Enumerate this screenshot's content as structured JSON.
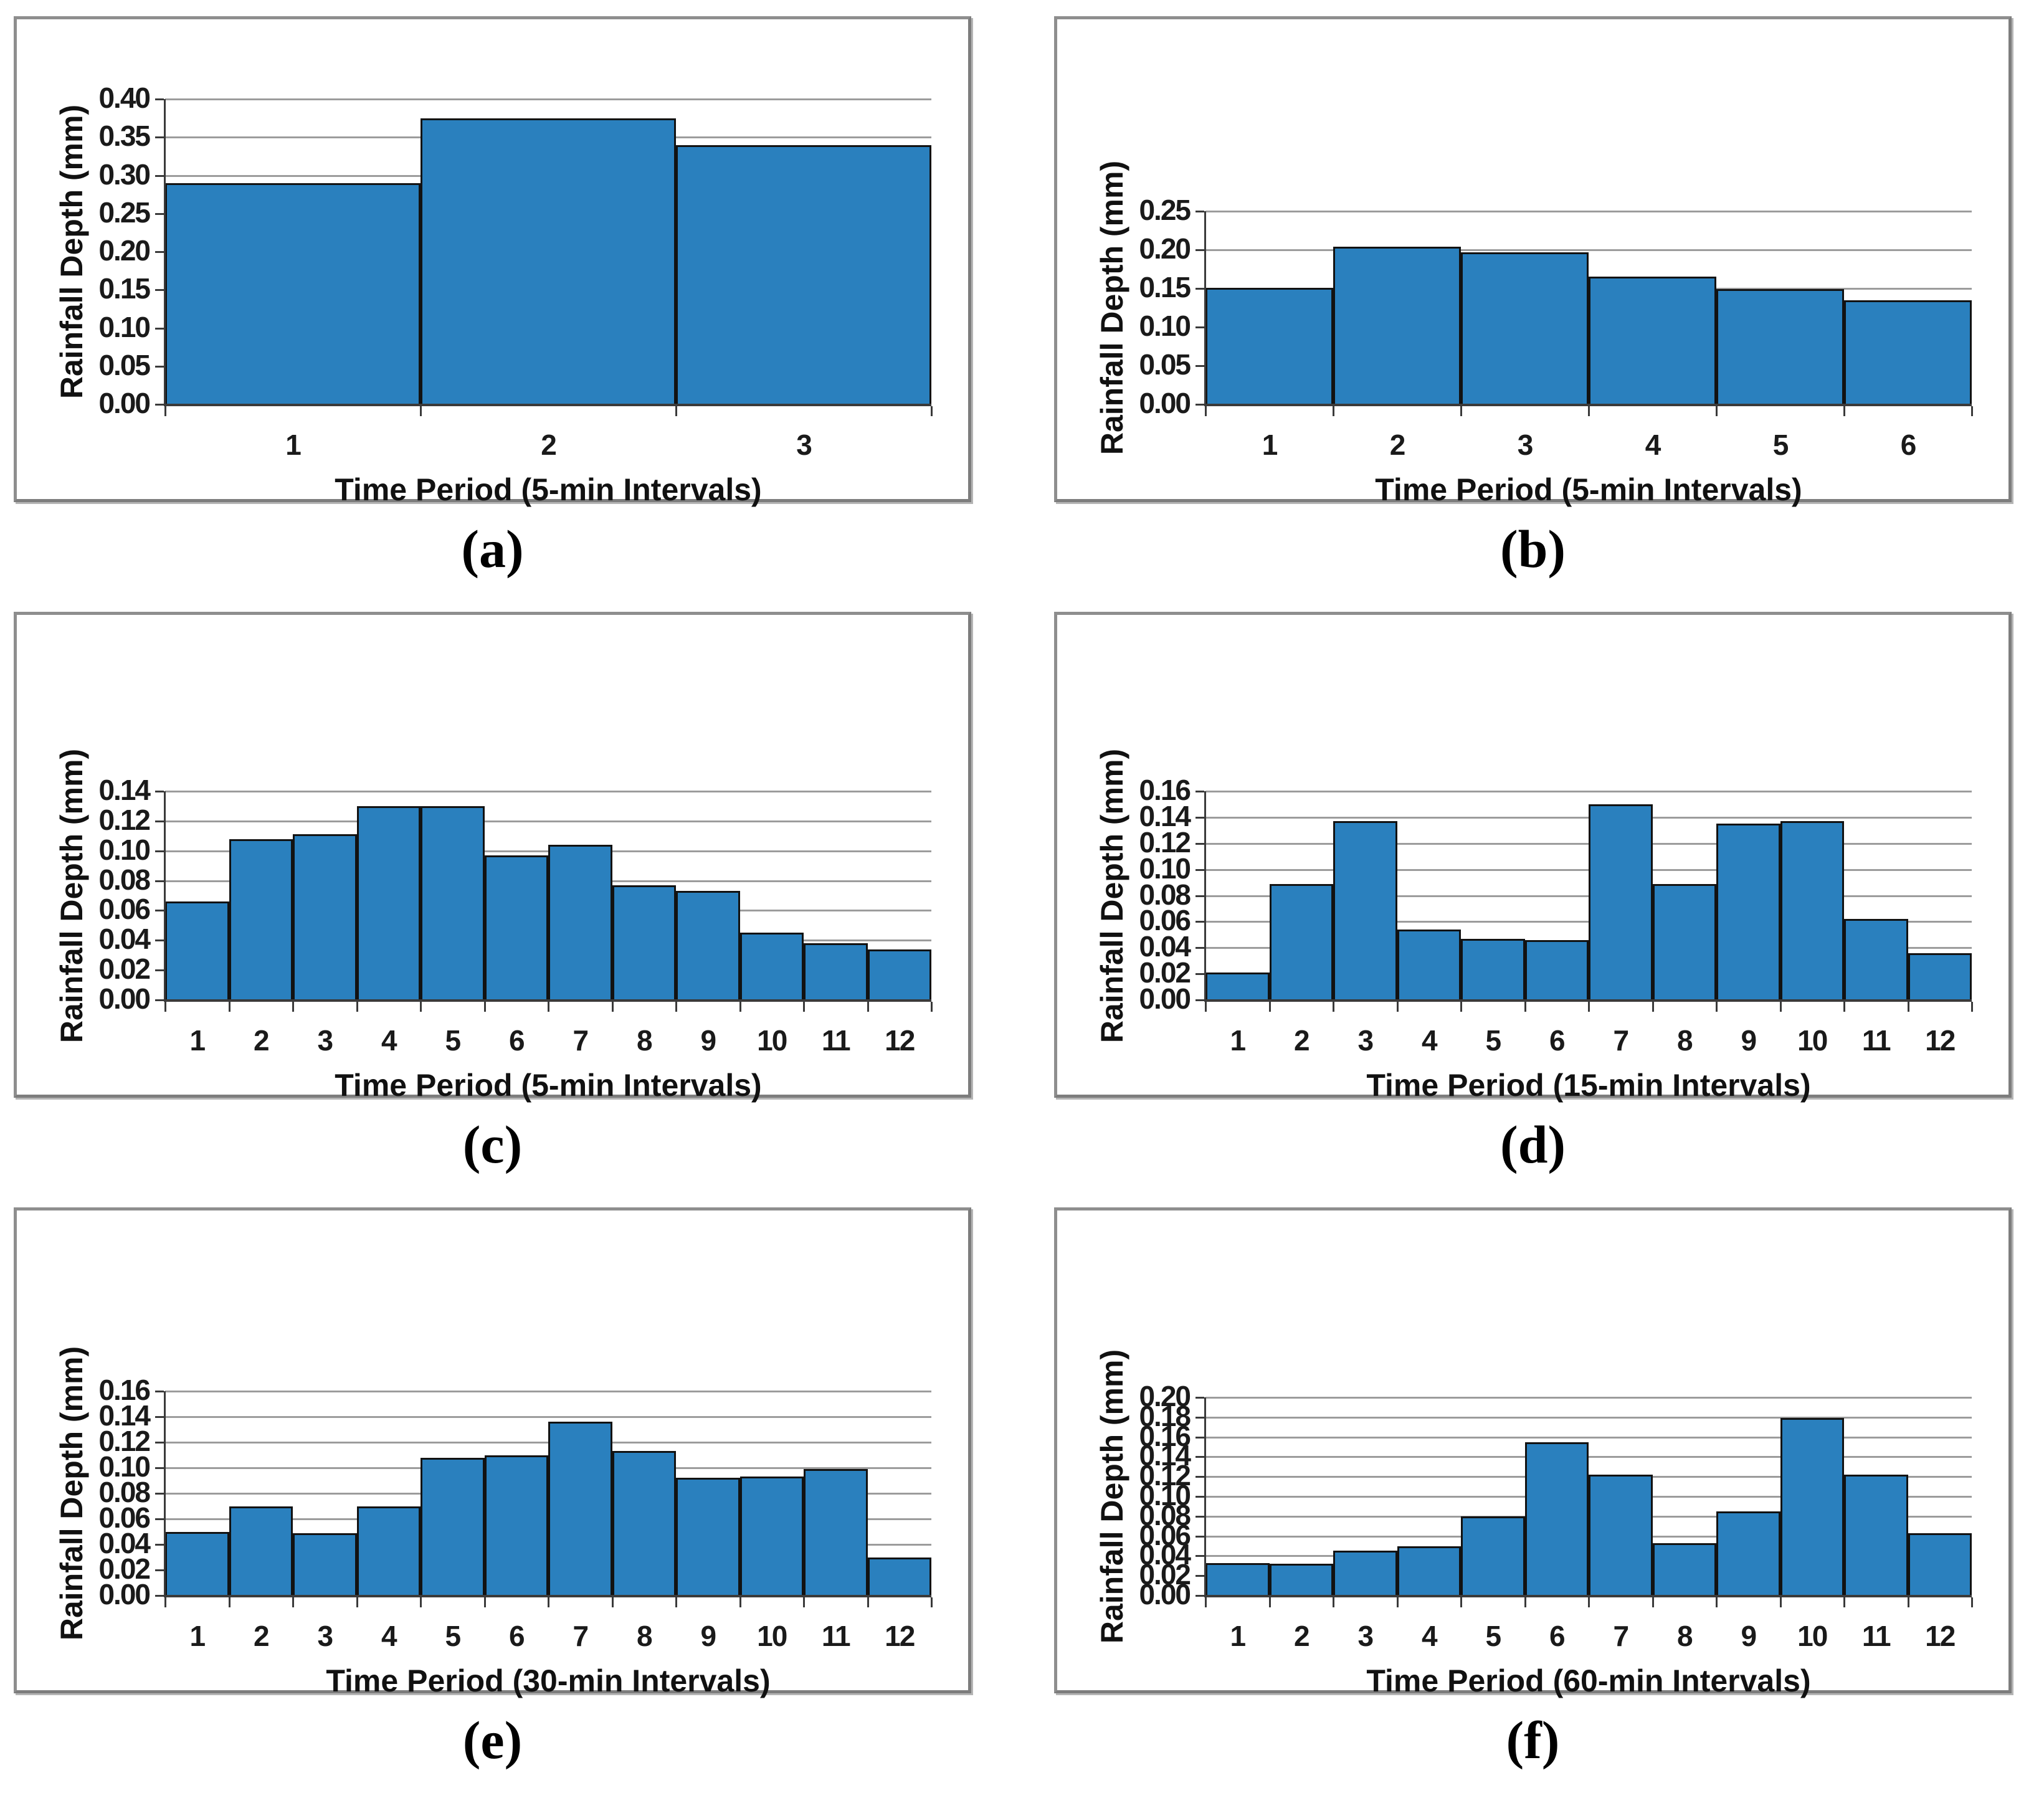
{
  "style": {
    "bar_fill": "#2A80BE",
    "bar_stroke": "#121212",
    "gridline_color": "#9C9C9C",
    "axis_color": "#3A3A3A"
  },
  "chart_data": [
    {
      "type": "bar",
      "caption": "(a)",
      "categories": [
        "1",
        "2",
        "3"
      ],
      "values": [
        0.29,
        0.375,
        0.34
      ],
      "xlabel": "Time Period (5-min Intervals)",
      "ylabel": "Rainfall Depth (mm)",
      "ylim": [
        0.0,
        0.4
      ],
      "ytick_step": 0.05,
      "grid": "on",
      "legend": "none"
    },
    {
      "type": "bar",
      "caption": "(b)",
      "categories": [
        "1",
        "2",
        "3",
        "4",
        "5",
        "6"
      ],
      "values": [
        0.151,
        0.204,
        0.197,
        0.165,
        0.149,
        0.135
      ],
      "xlabel": "Time Period (5-min Intervals)",
      "ylabel": "Rainfall Depth (mm)",
      "ylim": [
        0.0,
        0.25
      ],
      "ytick_step": 0.05,
      "grid": "on",
      "legend": "none"
    },
    {
      "type": "bar",
      "caption": "(c)",
      "categories": [
        "1",
        "2",
        "3",
        "4",
        "5",
        "6",
        "7",
        "8",
        "9",
        "10",
        "11",
        "12"
      ],
      "values": [
        0.066,
        0.108,
        0.111,
        0.13,
        0.13,
        0.097,
        0.104,
        0.077,
        0.073,
        0.045,
        0.038,
        0.034
      ],
      "xlabel": "Time Period (5-min Intervals)",
      "ylabel": "Rainfall Depth (mm)",
      "ylim": [
        0.0,
        0.14
      ],
      "ytick_step": 0.02,
      "grid": "on",
      "legend": "none"
    },
    {
      "type": "bar",
      "caption": "(d)",
      "categories": [
        "1",
        "2",
        "3",
        "4",
        "5",
        "6",
        "7",
        "8",
        "9",
        "10",
        "11",
        "12"
      ],
      "values": [
        0.021,
        0.089,
        0.137,
        0.054,
        0.047,
        0.046,
        0.15,
        0.089,
        0.135,
        0.137,
        0.062,
        0.036
      ],
      "xlabel": "Time Period (15-min Intervals)",
      "ylabel": "Rainfall Depth (mm)",
      "ylim": [
        0.0,
        0.16
      ],
      "ytick_step": 0.02,
      "grid": "on",
      "legend": "none"
    },
    {
      "type": "bar",
      "caption": "(e)",
      "categories": [
        "1",
        "2",
        "3",
        "4",
        "5",
        "6",
        "7",
        "8",
        "9",
        "10",
        "11",
        "12"
      ],
      "values": [
        0.05,
        0.07,
        0.049,
        0.07,
        0.108,
        0.11,
        0.136,
        0.113,
        0.092,
        0.093,
        0.099,
        0.03
      ],
      "xlabel": "Time Period (30-min Intervals)",
      "ylabel": "Rainfall Depth (mm)",
      "ylim": [
        0.0,
        0.16
      ],
      "ytick_step": 0.02,
      "grid": "on",
      "legend": "none"
    },
    {
      "type": "bar",
      "caption": "(f)",
      "categories": [
        "1",
        "2",
        "3",
        "4",
        "5",
        "6",
        "7",
        "8",
        "9",
        "10",
        "11",
        "12"
      ],
      "values": [
        0.033,
        0.032,
        0.045,
        0.05,
        0.08,
        0.155,
        0.122,
        0.053,
        0.085,
        0.179,
        0.122,
        0.063
      ],
      "xlabel": "Time Period (60-min Intervals)",
      "ylabel": "Rainfall Depth (mm)",
      "ylim": [
        0.0,
        0.2
      ],
      "ytick_step": 0.02,
      "grid": "on",
      "legend": "none"
    }
  ]
}
